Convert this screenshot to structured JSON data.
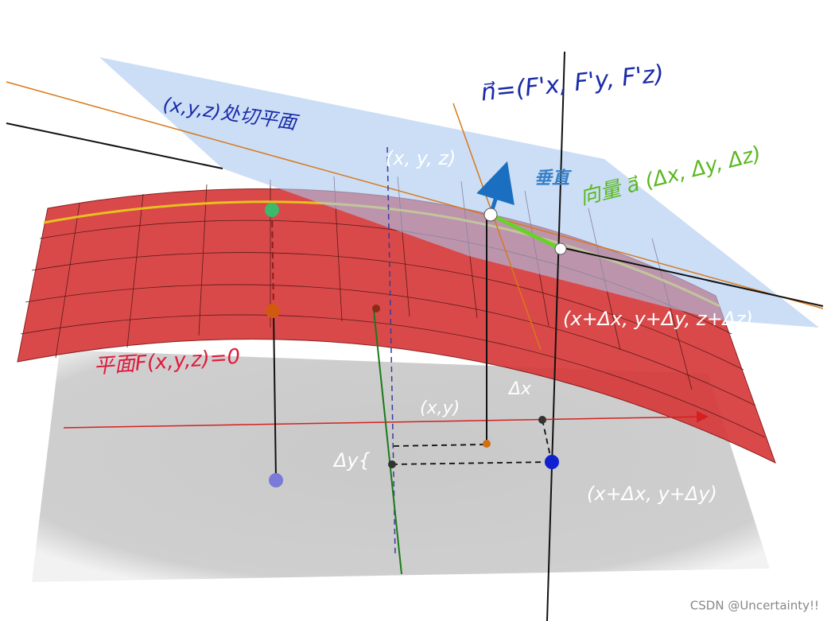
{
  "annotations": {
    "tangent_plane": "(x,y,z)处切平面",
    "normal_vector": "n⃗=(F'x, F'y, F'z)",
    "point": "(x, y, z)",
    "perpendicular": "垂直",
    "vector_a": "向量 a⃗ (Δx, Δy, Δz)",
    "point_delta": "(x+Δx, y+Δy, z+Δz)",
    "surface": "平面F(x,y,z)=0",
    "projection": "(x,y)",
    "delta_x": "Δx",
    "delta_y": "Δy{",
    "projection_delta": "(x+Δx, y+Δy)"
  },
  "watermark": "CSDN @Uncertainty!!"
}
